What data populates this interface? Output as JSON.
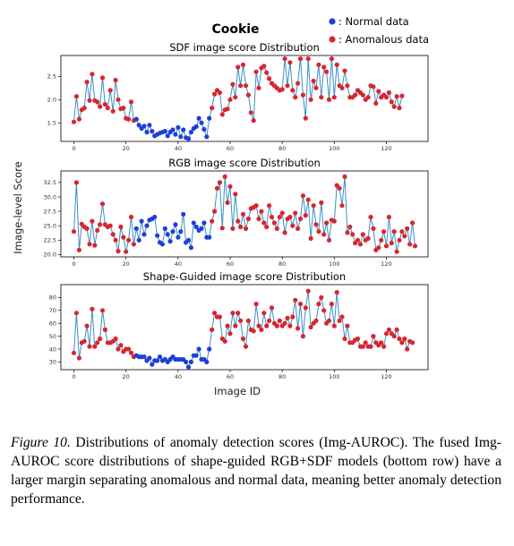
{
  "figure": {
    "title": "Cookie",
    "ylabel": "Image-level Score",
    "xlabel": "Image ID",
    "legend": [
      {
        "label": ": Normal data",
        "color": "#1f3fd9"
      },
      {
        "label": ": Anomalous data",
        "color": "#d7262f"
      }
    ]
  },
  "chart_data": [
    {
      "type": "scatter",
      "title": "SDF image score Distribution",
      "xlim": [
        -5,
        136
      ],
      "ylim": [
        1.1,
        2.95
      ],
      "xticks": [
        "0",
        "20",
        "40",
        "60",
        "80",
        "100",
        "120"
      ],
      "xtick_values": [
        0,
        20,
        40,
        60,
        80,
        100,
        120
      ],
      "yticks": [
        "1.5",
        "2.0",
        "2.5"
      ],
      "ytick_values": [
        1.5,
        2.0,
        2.5
      ],
      "grid": false,
      "line_color": "#3a8fc5",
      "normal_color": "#1f3fd9",
      "anomalous_color": "#d7262f",
      "normal_range": [
        24,
        52
      ],
      "values": [
        1.52,
        2.07,
        1.58,
        1.78,
        1.82,
        2.38,
        1.98,
        2.55,
        1.98,
        1.95,
        1.85,
        2.47,
        1.9,
        1.82,
        2.2,
        1.75,
        2.42,
        2.0,
        1.8,
        1.82,
        1.6,
        1.58,
        1.95,
        1.55,
        1.58,
        1.45,
        1.38,
        1.43,
        1.3,
        1.45,
        1.32,
        1.22,
        1.25,
        1.28,
        1.3,
        1.32,
        1.22,
        1.3,
        1.35,
        1.25,
        1.4,
        1.2,
        1.35,
        1.18,
        1.16,
        1.3,
        1.38,
        1.42,
        1.6,
        1.5,
        1.36,
        1.2,
        1.6,
        1.82,
        2.12,
        2.2,
        2.15,
        1.68,
        1.78,
        1.8,
        2.0,
        2.33,
        2.05,
        2.7,
        2.3,
        2.75,
        2.3,
        2.1,
        1.72,
        1.55,
        2.6,
        2.25,
        2.68,
        2.72,
        2.58,
        2.45,
        2.35,
        2.3,
        2.25,
        2.2,
        2.22,
        2.88,
        2.3,
        2.8,
        2.2,
        2.05,
        2.35,
        2.88,
        2.1,
        1.6,
        2.88,
        2.0,
        2.4,
        2.25,
        2.75,
        2.05,
        2.7,
        2.6,
        2.0,
        2.88,
        2.05,
        2.75,
        2.3,
        2.25,
        2.62,
        2.3,
        2.05,
        2.05,
        2.1,
        2.2,
        2.15,
        2.1,
        2.0,
        2.05,
        2.3,
        2.28,
        1.92,
        2.18,
        2.05,
        2.1,
        2.05,
        2.15,
        1.95,
        1.85,
        2.07,
        1.82,
        2.08
      ]
    },
    {
      "type": "scatter",
      "title": "RGB image score Distribution",
      "xlim": [
        -5,
        136
      ],
      "ylim": [
        19.6,
        34.5
      ],
      "xticks": [
        "0",
        "20",
        "40",
        "60",
        "80",
        "100",
        "120"
      ],
      "xtick_values": [
        0,
        20,
        40,
        60,
        80,
        100,
        120
      ],
      "yticks": [
        "20.0",
        "22.5",
        "25.0",
        "27.5",
        "30.0",
        "32.5"
      ],
      "ytick_values": [
        20.0,
        22.5,
        25.0,
        27.5,
        30.0,
        32.5
      ],
      "grid": false,
      "line_color": "#3a8fc5",
      "normal_color": "#1f3fd9",
      "anomalous_color": "#d7262f",
      "normal_range": [
        24,
        52
      ],
      "values": [
        24.0,
        32.5,
        20.8,
        25.3,
        24.8,
        24.5,
        21.8,
        25.8,
        21.6,
        24.2,
        25.2,
        28.8,
        25.2,
        24.8,
        25.0,
        23.5,
        22.5,
        20.6,
        24.8,
        23.0,
        20.5,
        22.5,
        26.5,
        21.8,
        24.5,
        22.5,
        25.8,
        23.5,
        25.0,
        26.0,
        26.2,
        26.5,
        23.3,
        22.1,
        21.8,
        24.5,
        23.5,
        22.3,
        24.0,
        25.2,
        23.0,
        24.0,
        27.0,
        22.1,
        22.5,
        21.2,
        25.5,
        24.8,
        24.2,
        24.5,
        25.5,
        23.0,
        23.0,
        25.8,
        27.5,
        31.5,
        32.5,
        24.6,
        33.5,
        29.0,
        31.8,
        24.5,
        30.5,
        25.8,
        24.8,
        27.0,
        24.5,
        26.2,
        28.0,
        28.2,
        28.5,
        26.2,
        27.5,
        25.5,
        24.8,
        28.5,
        26.5,
        25.5,
        24.5,
        26.5,
        27.2,
        23.8,
        26.2,
        26.5,
        25.0,
        27.2,
        24.5,
        26.2,
        30.2,
        26.8,
        29.5,
        22.8,
        28.5,
        25.2,
        24.0,
        29.0,
        23.5,
        25.5,
        22.5,
        26.0,
        25.8,
        32.0,
        31.5,
        28.5,
        33.5,
        23.8,
        24.8,
        23.5,
        22.0,
        22.5,
        21.8,
        23.5,
        22.5,
        22.8,
        26.5,
        24.5,
        20.8,
        21.2,
        22.5,
        24.0,
        21.5,
        26.5,
        22.0,
        24.0,
        20.5,
        22.5,
        24.0,
        23.2,
        24.5,
        21.8,
        25.5,
        21.5
      ]
    },
    {
      "type": "scatter",
      "title": "Shape-Guided image score Distribution",
      "xlim": [
        -5,
        136
      ],
      "ylim": [
        24,
        90
      ],
      "xticks": [
        "0",
        "20",
        "40",
        "60",
        "80",
        "100",
        "120"
      ],
      "xtick_values": [
        0,
        20,
        40,
        60,
        80,
        100,
        120
      ],
      "yticks": [
        "30",
        "40",
        "50",
        "60",
        "70",
        "80"
      ],
      "ytick_values": [
        30,
        40,
        50,
        60,
        70,
        80
      ],
      "grid": false,
      "line_color": "#3a8fc5",
      "normal_color": "#1f3fd9",
      "anomalous_color": "#d7262f",
      "normal_range": [
        24,
        52
      ],
      "values": [
        37,
        68,
        33,
        45,
        46,
        58,
        42,
        71,
        42,
        45,
        48,
        70,
        55,
        45,
        45,
        46,
        48,
        40,
        43,
        38,
        40,
        40,
        37,
        34,
        35,
        34,
        34,
        34,
        31,
        33,
        28,
        31,
        31,
        34,
        31,
        32,
        30,
        32,
        34,
        32,
        32,
        32,
        32,
        30,
        26,
        30,
        35,
        35,
        40,
        32,
        32,
        30,
        40,
        55,
        68,
        65,
        65,
        48,
        46,
        58,
        52,
        68,
        58,
        68,
        62,
        48,
        42,
        62,
        55,
        54,
        75,
        58,
        55,
        68,
        58,
        62,
        72,
        60,
        58,
        62,
        58,
        60,
        64,
        58,
        65,
        78,
        56,
        75,
        50,
        72,
        85,
        57,
        60,
        62,
        75,
        80,
        70,
        60,
        62,
        75,
        58,
        84,
        62,
        65,
        48,
        58,
        45,
        45,
        47,
        48,
        42,
        42,
        45,
        42,
        42,
        50,
        45,
        43,
        45,
        42,
        52,
        55,
        52,
        50,
        55,
        48,
        45,
        48,
        40,
        46,
        45
      ]
    }
  ],
  "caption": {
    "label": "Figure 10.",
    "text": "Distributions of anomaly detection scores (Img-AUROC). The fused Img-AUROC score distributions of shape-guided RGB+SDF models (bottom row) have a larger margin separating anomalous and normal data, meaning better anomaly detection performance."
  }
}
